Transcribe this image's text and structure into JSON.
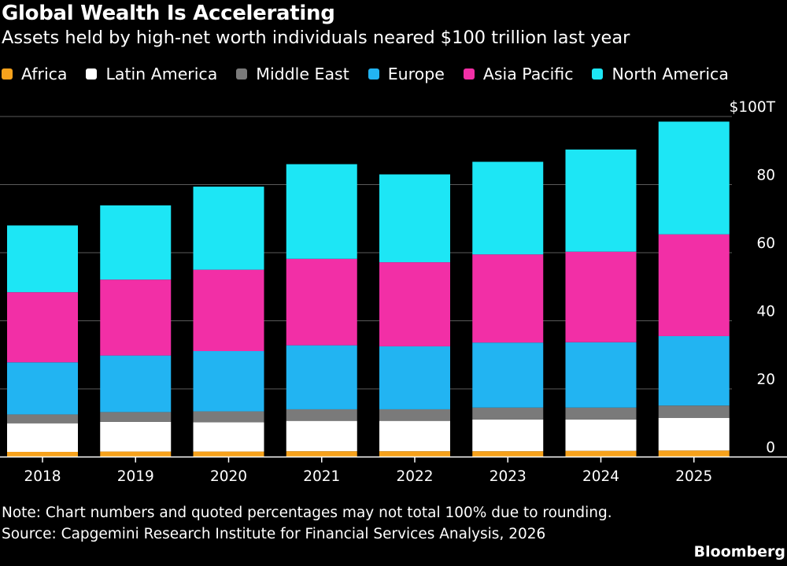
{
  "title": "Global Wealth Is Accelerating",
  "subtitle": "Assets held by high-net worth individuals neared $100 trillion last year",
  "note": "Note: Chart numbers and quoted percentages may not total 100% due to rounding.",
  "source": "Source: Capgemini Research Institute for Financial Services Analysis, 2026",
  "logo": "Bloomberg",
  "colors": {
    "background": "#000000",
    "Africa": "#f7a21c",
    "Latin America": "#ffffff",
    "Middle East": "#7a7a7a",
    "Europe": "#22b4f2",
    "Asia Pacific": "#f22fa6",
    "North America": "#1de6f5"
  },
  "chart_data": {
    "type": "bar",
    "stacked": true,
    "categories": [
      "2018",
      "2019",
      "2020",
      "2021",
      "2022",
      "2023",
      "2024",
      "2025"
    ],
    "series": [
      {
        "name": "Africa",
        "color": "#f7a21c",
        "values": [
          1.5,
          1.6,
          1.6,
          1.7,
          1.7,
          1.7,
          1.8,
          1.9
        ]
      },
      {
        "name": "Latin America",
        "color": "#ffffff",
        "values": [
          8.4,
          8.7,
          8.6,
          8.9,
          8.9,
          9.3,
          9.2,
          9.6
        ]
      },
      {
        "name": "Middle East",
        "color": "#7a7a7a",
        "values": [
          2.6,
          2.9,
          3.2,
          3.4,
          3.4,
          3.5,
          3.5,
          3.6
        ]
      },
      {
        "name": "Europe",
        "color": "#22b4f2",
        "values": [
          15.3,
          16.6,
          17.7,
          18.8,
          18.5,
          19.1,
          19.2,
          20.4
        ]
      },
      {
        "name": "Asia Pacific",
        "color": "#f22fa6",
        "values": [
          20.6,
          22.3,
          23.9,
          25.4,
          24.7,
          25.9,
          26.6,
          29.9
        ]
      },
      {
        "name": "North America",
        "color": "#1de6f5",
        "values": [
          19.6,
          21.8,
          24.4,
          27.8,
          25.8,
          27.2,
          30.0,
          33.1
        ]
      }
    ],
    "ylim": [
      0,
      100
    ],
    "yticks": [
      0,
      20,
      40,
      60,
      80,
      100
    ],
    "ytick_labels": [
      "0",
      "20",
      "40",
      "60",
      "80",
      "$100T"
    ],
    "xlabel": "",
    "ylabel": "",
    "grid": true,
    "y_axis_side": "right",
    "legend_position": "top-left"
  }
}
